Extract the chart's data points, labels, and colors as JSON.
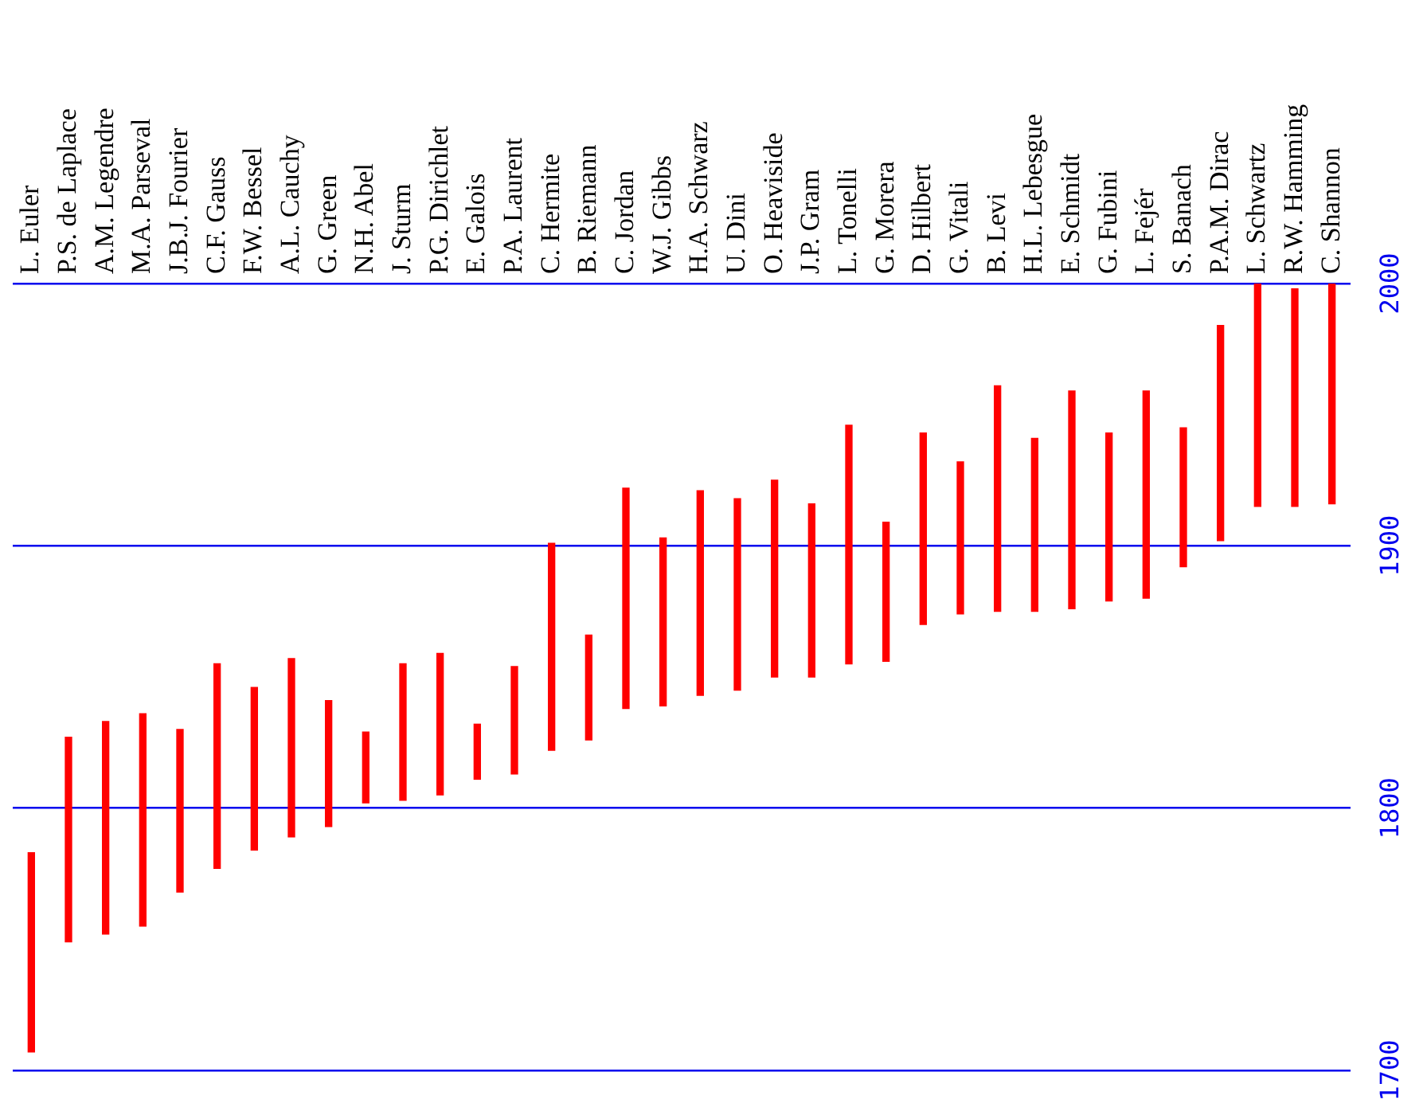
{
  "chart_data": {
    "type": "bar",
    "categories": [
      "L. Euler",
      "P.S. de Laplace",
      "A.M. Legendre",
      "M.A. Parseval",
      "J.B.J. Fourier",
      "C.F. Gauss",
      "F.W. Bessel",
      "A.L. Cauchy",
      "G. Green",
      "N.H. Abel",
      "J. Sturm",
      "P.G. Dirichlet",
      "E. Galois",
      "P.A. Laurent",
      "C. Hermite",
      "B. Riemann",
      "C. Jordan",
      "W.J. Gibbs",
      "H.A. Schwarz",
      "U. Dini",
      "O. Heaviside",
      "J.P. Gram",
      "L. Tonelli",
      "G. Morera",
      "D. Hilbert",
      "G. Vitali",
      "B. Levi",
      "H.L. Lebesgue",
      "E. Schmidt",
      "G. Fubini",
      "L. Fejér",
      "S. Banach",
      "P.A.M. Dirac",
      "L. Schwartz",
      "R.W. Hamming",
      "C. Shannon"
    ],
    "base": [
      1707,
      1749,
      1752,
      1755,
      1768,
      1777,
      1784,
      1789,
      1793,
      1802,
      1803,
      1805,
      1811,
      1813,
      1822,
      1826,
      1838,
      1839,
      1843,
      1845,
      1850,
      1850,
      1855,
      1856,
      1870,
      1874,
      1875,
      1875,
      1876,
      1879,
      1880,
      1892,
      1902,
      1915,
      1915,
      1916
    ],
    "values": [
      76,
      78,
      81,
      81,
      62,
      78,
      62,
      68,
      48,
      27,
      52,
      54,
      21,
      41,
      79,
      40,
      84,
      64,
      78,
      73,
      75,
      66,
      91,
      53,
      73,
      58,
      86,
      66,
      83,
      64,
      79,
      53,
      82,
      87,
      83,
      85
    ],
    "color": "#ff0000",
    "ylim": [
      1700,
      2000
    ],
    "yticks": [
      1700,
      1800,
      1900,
      2000
    ],
    "grid": "y"
  }
}
